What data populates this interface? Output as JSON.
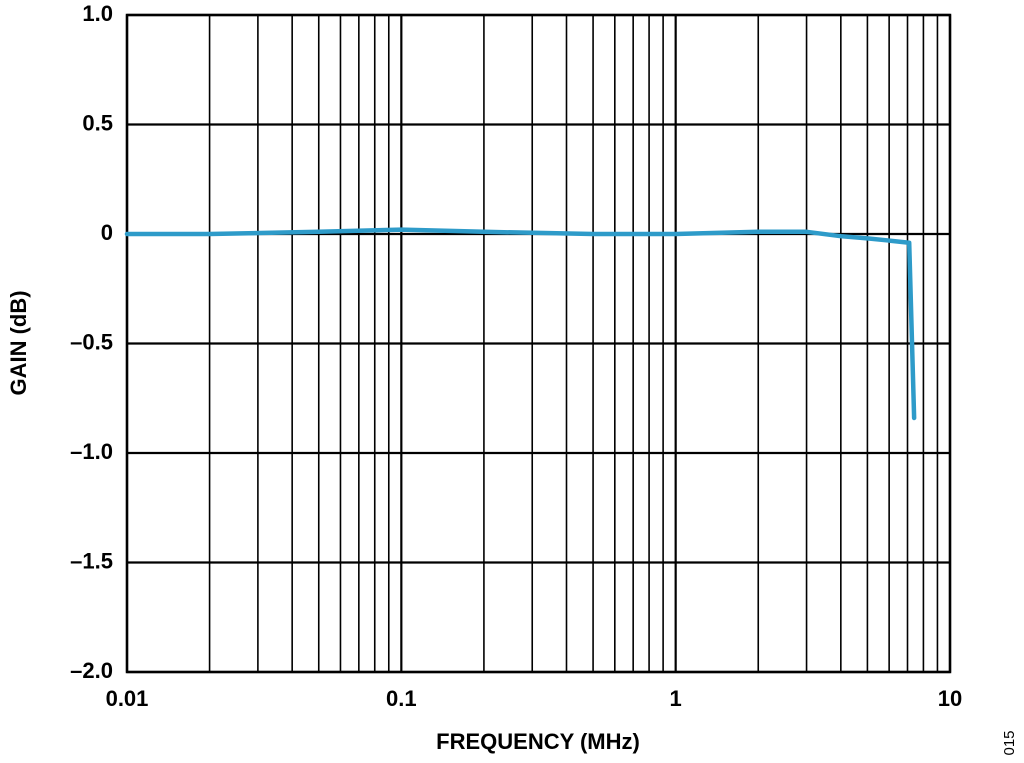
{
  "chart_data": {
    "type": "line",
    "xlabel": "FREQUENCY (MHz)",
    "ylabel": "GAIN (dB)",
    "figure_id": "015",
    "xscale": "log",
    "xlim": [
      0.01,
      10
    ],
    "ylim": [
      -2,
      1
    ],
    "xticks": [
      0.01,
      0.1,
      1,
      10
    ],
    "xminorticks": [
      0.02,
      0.03,
      0.04,
      0.05,
      0.06,
      0.07,
      0.08,
      0.09,
      0.2,
      0.3,
      0.4,
      0.5,
      0.6,
      0.7,
      0.8,
      0.9,
      2,
      3,
      4,
      5,
      6,
      7,
      8,
      9
    ],
    "yticks": [
      {
        "value": 1,
        "label": "1.0"
      },
      0.5,
      0,
      {
        "value": -0.5,
        "label": "–0.5"
      },
      {
        "value": -1,
        "label": "–1.0"
      },
      {
        "value": -1.5,
        "label": "–1.5"
      },
      {
        "value": -2,
        "label": "–2.0"
      }
    ],
    "grid": true,
    "series": [
      {
        "color": "#2e9bc9",
        "x": [
          0.01,
          0.02,
          0.05,
          0.1,
          0.2,
          0.5,
          1,
          2,
          3,
          4,
          5,
          6,
          7.1,
          7.4
        ],
        "values": [
          0,
          0,
          0.01,
          0.02,
          0.01,
          0,
          0,
          0.01,
          0.01,
          -0.01,
          -0.02,
          -0.03,
          -0.04,
          -0.84
        ]
      }
    ]
  }
}
